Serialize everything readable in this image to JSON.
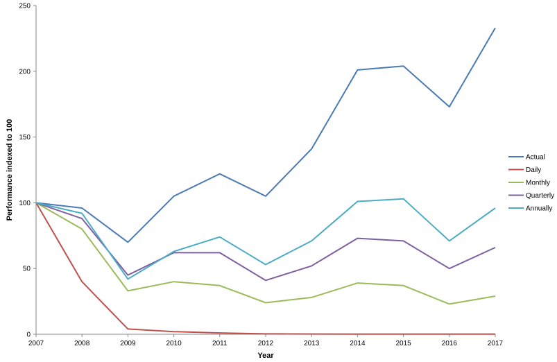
{
  "chart_data": {
    "type": "line",
    "xlabel": "Year",
    "ylabel": "Performance indexed to 100",
    "ylim": [
      0,
      250
    ],
    "yticks": [
      0,
      50,
      100,
      150,
      200,
      250
    ],
    "categories": [
      "2007",
      "2008",
      "2009",
      "2010",
      "2011",
      "2012",
      "2013",
      "2014",
      "2015",
      "2016",
      "2017"
    ],
    "grid": false,
    "legend_position": "right",
    "series": [
      {
        "name": "Actual",
        "color": "#4a7ab5",
        "values": [
          100,
          96,
          70,
          105,
          122,
          105,
          141,
          201,
          204,
          173,
          233
        ]
      },
      {
        "name": "Daily",
        "color": "#c0504d",
        "values": [
          100,
          40,
          4,
          2,
          1,
          0.3,
          0.2,
          0.1,
          0.1,
          0.1,
          0.1
        ]
      },
      {
        "name": "Monthly",
        "color": "#9bbb59",
        "values": [
          100,
          80,
          33,
          40,
          37,
          24,
          28,
          39,
          37,
          23,
          29
        ]
      },
      {
        "name": "Quarterly",
        "color": "#7f5f9f",
        "values": [
          100,
          88,
          45,
          62,
          62,
          41,
          52,
          73,
          71,
          50,
          66
        ]
      },
      {
        "name": "Annually",
        "color": "#4bacc6",
        "values": [
          100,
          92,
          42,
          63,
          74,
          53,
          71,
          101,
          103,
          71,
          96
        ]
      }
    ]
  }
}
